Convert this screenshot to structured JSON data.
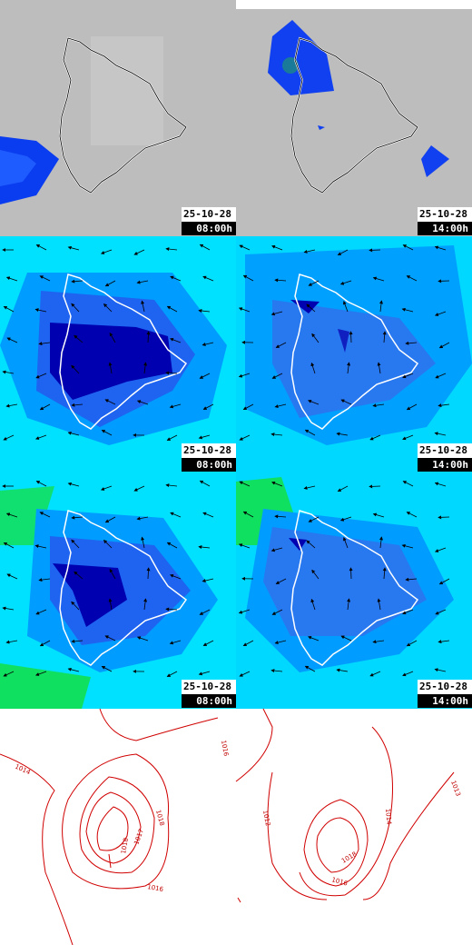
{
  "panels": [
    {
      "date": "25-10-28",
      "time": "08:00h"
    },
    {
      "date": "25-10-28",
      "time": "14:00h"
    },
    {
      "date": "25-10-28",
      "time": "08:00h"
    },
    {
      "date": "25-10-28",
      "time": "14:00h"
    },
    {
      "date": "25-10-28",
      "time": "08:00h"
    },
    {
      "date": "25-10-28",
      "time": "14:00h"
    }
  ],
  "isobar_labels": {
    "left": [
      "1014",
      "1016",
      "1018",
      "1017",
      "1018",
      "1016"
    ],
    "right": [
      "1012",
      "1014",
      "1013",
      "1018",
      "1016"
    ]
  }
}
